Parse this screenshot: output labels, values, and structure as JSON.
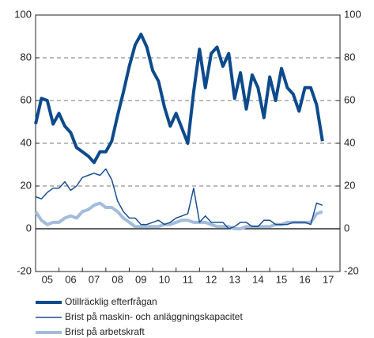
{
  "chart_data": {
    "type": "line",
    "x": [
      2005,
      2005.25,
      2005.5,
      2005.75,
      2006,
      2006.25,
      2006.5,
      2006.75,
      2007,
      2007.25,
      2007.5,
      2007.75,
      2008,
      2008.25,
      2008.5,
      2008.75,
      2009,
      2009.25,
      2009.5,
      2009.75,
      2010,
      2010.25,
      2010.5,
      2010.75,
      2011,
      2011.25,
      2011.5,
      2011.75,
      2012,
      2012.25,
      2012.5,
      2012.75,
      2013,
      2013.25,
      2013.5,
      2013.75,
      2014,
      2014.25,
      2014.5,
      2014.75,
      2015,
      2015.25,
      2015.5,
      2015.75,
      2016,
      2016.25,
      2016.5,
      2016.75,
      2017,
      2017.25
    ],
    "series": [
      {
        "name": "Otillräcklig efterfrågan",
        "color": "#0d4a8c",
        "width": 4,
        "values": [
          49,
          61,
          60,
          49,
          54,
          48,
          45,
          38,
          36,
          34,
          31,
          36,
          36,
          41,
          53,
          64,
          76,
          86,
          91,
          85,
          74,
          69,
          57,
          48,
          54,
          47,
          40,
          64,
          84,
          66,
          82,
          85,
          76,
          82,
          61,
          73,
          56,
          72,
          66,
          52,
          71,
          60,
          75,
          66,
          63,
          55,
          66,
          66,
          58,
          41
        ]
      },
      {
        "name": "Brist på maskin- och anläggningskapacitet",
        "color": "#1a4f91",
        "width": 1.5,
        "values": [
          15,
          14,
          17,
          19,
          19,
          22,
          18,
          20,
          24,
          25,
          26,
          25,
          28,
          23,
          13,
          8,
          5,
          5,
          2,
          2,
          3,
          4,
          2,
          3,
          5,
          6,
          7,
          19,
          3,
          6,
          3,
          3,
          3,
          0,
          1,
          3,
          3,
          1,
          1,
          4,
          4,
          2,
          2,
          2,
          3,
          3,
          3,
          2,
          12,
          11
        ]
      },
      {
        "name": "Brist på arbetskraft",
        "color": "#a3bcdb",
        "width": 4,
        "values": [
          8,
          4,
          2,
          3,
          3,
          5,
          6,
          5,
          8,
          9,
          11,
          12,
          10,
          10,
          8,
          5,
          3,
          1,
          1,
          1,
          1,
          1,
          2,
          2,
          3,
          4,
          4,
          3,
          3,
          3,
          2,
          1,
          1,
          1,
          0,
          0,
          1,
          1,
          1,
          1,
          1,
          2,
          2,
          3,
          3,
          3,
          3,
          3,
          7,
          8
        ]
      }
    ],
    "xlim": [
      2005,
      2018
    ],
    "xticks": [
      {
        "value": 2005.5,
        "label": "05"
      },
      {
        "value": 2006.5,
        "label": "06"
      },
      {
        "value": 2007.5,
        "label": "07"
      },
      {
        "value": 2008.5,
        "label": "08"
      },
      {
        "value": 2009.5,
        "label": "09"
      },
      {
        "value": 2010.5,
        "label": "10"
      },
      {
        "value": 2011.5,
        "label": "11"
      },
      {
        "value": 2012.5,
        "label": "12"
      },
      {
        "value": 2013.5,
        "label": "13"
      },
      {
        "value": 2014.5,
        "label": "14"
      },
      {
        "value": 2015.5,
        "label": "15"
      },
      {
        "value": 2016.5,
        "label": "16"
      },
      {
        "value": 2017.5,
        "label": "17"
      }
    ],
    "ylim": [
      -20,
      100
    ],
    "yticks": [
      -20,
      0,
      20,
      40,
      60,
      80,
      100
    ],
    "grid": true
  }
}
